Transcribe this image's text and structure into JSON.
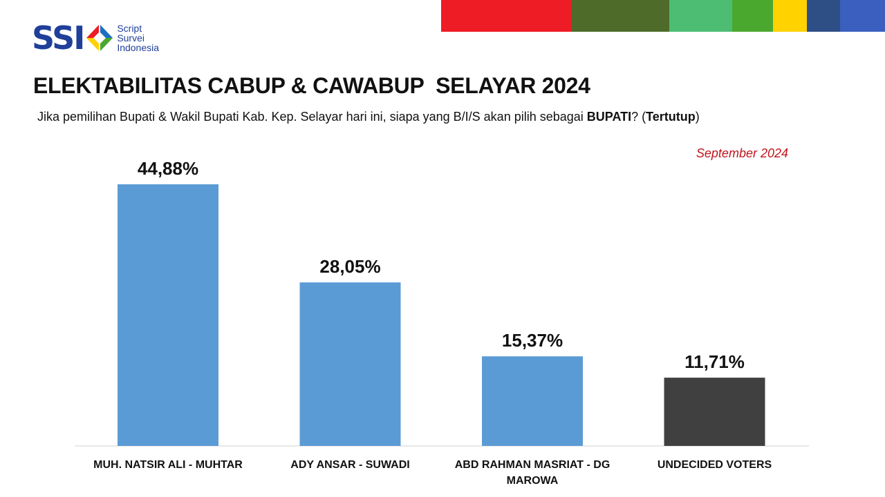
{
  "header": {
    "logo_text": "SSI",
    "logo_tagline": [
      "Script",
      "Survei",
      "Indonesia"
    ],
    "color_strip": [
      "#ee1c25",
      "#4e6b2a",
      "#4dbd74",
      "#4ba82e",
      "#ffd200",
      "#2e4e86",
      "#3a5fbf"
    ]
  },
  "title": "ELEKTABILITAS CABUP & CAWABUP  SELAYAR 2024",
  "subtitle": {
    "pre": "Jika pemilihan Bupati & Wakil Bupati Kab. Kep. Selayar hari ini, siapa yang B/I/S akan pilih sebagai ",
    "bold1": "BUPATI",
    "mid": "? (",
    "bold2": "Tertutup",
    "post": ")"
  },
  "period": "September 2024",
  "chart_data": {
    "type": "bar",
    "categories": [
      [
        "MUH. NATSIR ALI - MUHTAR"
      ],
      [
        "ADY ANSAR - SUWADI"
      ],
      [
        "ABD RAHMAN MASRIAT - DG",
        "MAROWA"
      ],
      [
        "UNDECIDED VOTERS"
      ]
    ],
    "values": [
      44.88,
      28.05,
      15.37,
      11.71
    ],
    "labels": [
      "44,88%",
      "28,05%",
      "15,37%",
      "11,71%"
    ],
    "colors": [
      "#5b9bd5",
      "#5b9bd5",
      "#5b9bd5",
      "#404040"
    ],
    "ylim": [
      0,
      45
    ],
    "grid": false,
    "legend": "none"
  }
}
